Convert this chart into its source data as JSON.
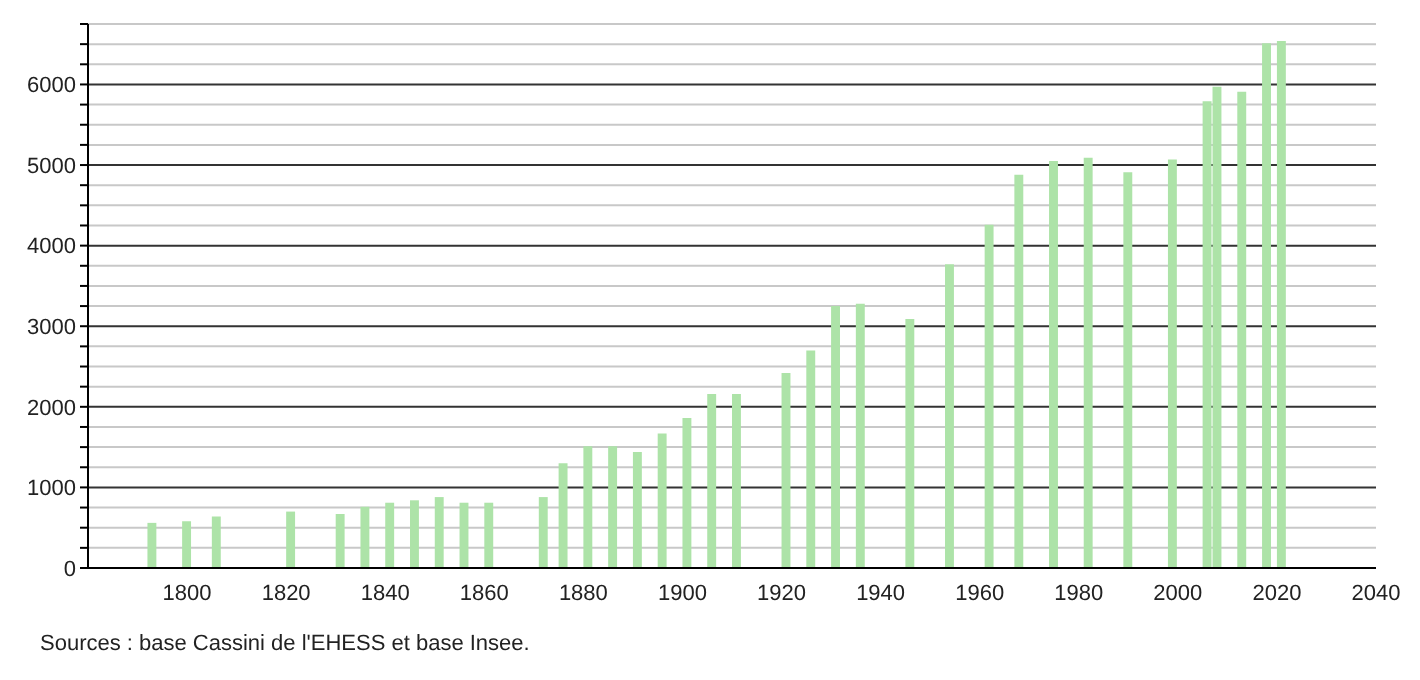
{
  "chart_data": {
    "type": "bar",
    "x": [
      1793,
      1800,
      1806,
      1821,
      1831,
      1836,
      1841,
      1846,
      1851,
      1856,
      1861,
      1872,
      1876,
      1881,
      1886,
      1891,
      1896,
      1901,
      1906,
      1911,
      1921,
      1926,
      1931,
      1936,
      1946,
      1954,
      1962,
      1968,
      1975,
      1982,
      1990,
      1999,
      2006,
      2008,
      2013,
      2018,
      2021
    ],
    "values": [
      560,
      580,
      640,
      700,
      670,
      760,
      810,
      840,
      880,
      810,
      810,
      880,
      1300,
      1510,
      1510,
      1440,
      1670,
      1860,
      2160,
      2160,
      2420,
      2700,
      3250,
      3280,
      3090,
      3770,
      4260,
      4880,
      5050,
      5090,
      4910,
      5070,
      5790,
      5970,
      5910,
      6510,
      6540
    ],
    "color": "#ade3a8",
    "xlim": [
      1780,
      2040
    ],
    "xticks": [
      1800,
      1820,
      1840,
      1860,
      1880,
      1900,
      1920,
      1940,
      1960,
      1980,
      2000,
      2020,
      2040
    ],
    "ylim": [
      0,
      6750
    ],
    "yticks": [
      0,
      {
        "value": 250,
        "label": null
      },
      {
        "value": 500,
        "label": null
      },
      {
        "value": 750,
        "label": null
      },
      1000,
      {
        "value": 1250,
        "label": null
      },
      {
        "value": 1500,
        "label": null
      },
      {
        "value": 1750,
        "label": null
      },
      2000,
      {
        "value": 2250,
        "label": null
      },
      {
        "value": 2500,
        "label": null
      },
      {
        "value": 2750,
        "label": null
      },
      3000,
      {
        "value": 3250,
        "label": null
      },
      {
        "value": 3500,
        "label": null
      },
      {
        "value": 3750,
        "label": null
      },
      4000,
      {
        "value": 4250,
        "label": null
      },
      {
        "value": 4500,
        "label": null
      },
      {
        "value": 4750,
        "label": null
      },
      5000,
      {
        "value": 5250,
        "label": null
      },
      {
        "value": 5500,
        "label": null
      },
      {
        "value": 5750,
        "label": null
      },
      6000,
      {
        "value": 6250,
        "label": null
      },
      {
        "value": 6500,
        "label": null
      },
      {
        "value": 6750,
        "label": null
      }
    ],
    "grid": "y",
    "annotations": [
      "Sources : base Cassini de l'EHESS et base Insee."
    ]
  }
}
